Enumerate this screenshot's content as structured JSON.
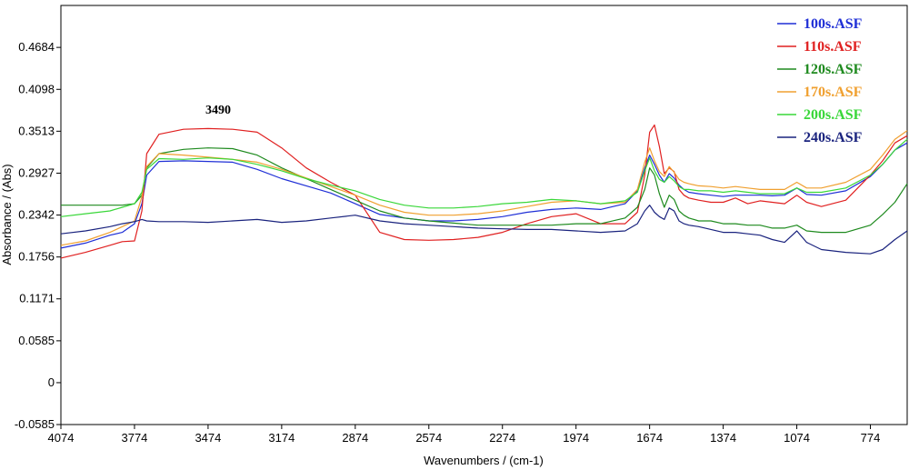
{
  "chart_data": {
    "type": "line",
    "title": "",
    "xlabel": "Wavenumbers / (cm-1)",
    "ylabel": "Absorbance / (Abs)",
    "xlim": [
      4074,
      624
    ],
    "ylim": [
      -0.0585,
      0.527
    ],
    "x_ticks": [
      "4074",
      "3774",
      "3474",
      "3174",
      "2874",
      "2574",
      "2274",
      "1974",
      "1674",
      "1374",
      "1074",
      "774"
    ],
    "y_ticks": [
      "-0.0585",
      "0",
      "0.0585",
      "0.1171",
      "0.1756",
      "0.2342",
      "0.2927",
      "0.3513",
      "0.4098",
      "0.4684"
    ],
    "annotation": {
      "text": "3490",
      "x": 3490,
      "y": 0.372
    },
    "legend_position": "top-right",
    "x": [
      4074,
      3974,
      3874,
      3824,
      3774,
      3744,
      3724,
      3674,
      3574,
      3474,
      3374,
      3274,
      3174,
      3074,
      2974,
      2874,
      2774,
      2674,
      2574,
      2474,
      2374,
      2274,
      2174,
      2074,
      1974,
      1874,
      1774,
      1724,
      1694,
      1674,
      1654,
      1634,
      1614,
      1594,
      1574,
      1554,
      1534,
      1514,
      1474,
      1424,
      1374,
      1324,
      1274,
      1224,
      1174,
      1124,
      1074,
      1034,
      974,
      874,
      774,
      724,
      674,
      624
    ],
    "series": [
      {
        "name": "100s.ASF",
        "color": "#1f2fd6",
        "values": [
          0.188,
          0.195,
          0.206,
          0.21,
          0.222,
          0.25,
          0.29,
          0.309,
          0.31,
          0.309,
          0.308,
          0.298,
          0.285,
          0.275,
          0.265,
          0.25,
          0.235,
          0.23,
          0.226,
          0.226,
          0.228,
          0.232,
          0.238,
          0.242,
          0.244,
          0.242,
          0.25,
          0.268,
          0.3,
          0.318,
          0.305,
          0.29,
          0.28,
          0.292,
          0.286,
          0.276,
          0.27,
          0.266,
          0.264,
          0.262,
          0.26,
          0.262,
          0.262,
          0.262,
          0.261,
          0.262,
          0.272,
          0.263,
          0.262,
          0.268,
          0.288,
          0.305,
          0.325,
          0.335
        ]
      },
      {
        "name": "110s.ASF",
        "color": "#e02020",
        "values": [
          0.174,
          0.182,
          0.192,
          0.197,
          0.198,
          0.24,
          0.32,
          0.347,
          0.354,
          0.355,
          0.354,
          0.35,
          0.328,
          0.3,
          0.28,
          0.262,
          0.21,
          0.2,
          0.199,
          0.2,
          0.203,
          0.21,
          0.222,
          0.232,
          0.236,
          0.222,
          0.222,
          0.238,
          0.29,
          0.35,
          0.36,
          0.33,
          0.292,
          0.3,
          0.295,
          0.27,
          0.262,
          0.258,
          0.255,
          0.252,
          0.252,
          0.258,
          0.25,
          0.254,
          0.252,
          0.25,
          0.262,
          0.252,
          0.246,
          0.255,
          0.29,
          0.31,
          0.335,
          0.345
        ]
      },
      {
        "name": "120s.ASF",
        "color": "#1e8a1e",
        "values": [
          0.248,
          0.248,
          0.248,
          0.248,
          0.25,
          0.262,
          0.3,
          0.32,
          0.326,
          0.328,
          0.327,
          0.318,
          0.3,
          0.285,
          0.27,
          0.255,
          0.24,
          0.23,
          0.226,
          0.223,
          0.22,
          0.22,
          0.22,
          0.22,
          0.222,
          0.222,
          0.23,
          0.245,
          0.27,
          0.3,
          0.29,
          0.264,
          0.245,
          0.262,
          0.256,
          0.24,
          0.234,
          0.23,
          0.226,
          0.226,
          0.222,
          0.222,
          0.22,
          0.22,
          0.216,
          0.216,
          0.22,
          0.212,
          0.21,
          0.21,
          0.22,
          0.235,
          0.252,
          0.278
        ]
      },
      {
        "name": "170s.ASF",
        "color": "#f0a030",
        "values": [
          0.192,
          0.198,
          0.21,
          0.218,
          0.226,
          0.26,
          0.302,
          0.32,
          0.318,
          0.315,
          0.312,
          0.308,
          0.298,
          0.286,
          0.274,
          0.262,
          0.248,
          0.238,
          0.234,
          0.234,
          0.236,
          0.24,
          0.246,
          0.252,
          0.254,
          0.25,
          0.252,
          0.27,
          0.308,
          0.328,
          0.31,
          0.295,
          0.288,
          0.302,
          0.294,
          0.284,
          0.28,
          0.278,
          0.275,
          0.274,
          0.272,
          0.274,
          0.272,
          0.27,
          0.27,
          0.27,
          0.28,
          0.272,
          0.272,
          0.28,
          0.298,
          0.318,
          0.34,
          0.352
        ]
      },
      {
        "name": "200s.ASF",
        "color": "#39d739",
        "values": [
          0.232,
          0.236,
          0.24,
          0.245,
          0.25,
          0.266,
          0.298,
          0.313,
          0.312,
          0.314,
          0.312,
          0.305,
          0.296,
          0.285,
          0.276,
          0.268,
          0.256,
          0.248,
          0.244,
          0.244,
          0.246,
          0.25,
          0.252,
          0.256,
          0.254,
          0.25,
          0.254,
          0.266,
          0.296,
          0.314,
          0.296,
          0.284,
          0.28,
          0.288,
          0.282,
          0.274,
          0.27,
          0.27,
          0.268,
          0.268,
          0.266,
          0.268,
          0.266,
          0.264,
          0.264,
          0.264,
          0.272,
          0.266,
          0.266,
          0.272,
          0.29,
          0.305,
          0.325,
          0.34
        ]
      },
      {
        "name": "240s.ASF",
        "color": "#1a237e",
        "values": [
          0.208,
          0.212,
          0.218,
          0.222,
          0.225,
          0.228,
          0.226,
          0.225,
          0.225,
          0.224,
          0.226,
          0.228,
          0.224,
          0.226,
          0.23,
          0.234,
          0.226,
          0.222,
          0.22,
          0.218,
          0.216,
          0.215,
          0.214,
          0.214,
          0.212,
          0.21,
          0.212,
          0.222,
          0.24,
          0.248,
          0.238,
          0.232,
          0.228,
          0.244,
          0.24,
          0.226,
          0.222,
          0.22,
          0.218,
          0.214,
          0.21,
          0.21,
          0.208,
          0.206,
          0.2,
          0.196,
          0.212,
          0.196,
          0.186,
          0.182,
          0.18,
          0.186,
          0.2,
          0.212
        ]
      }
    ]
  }
}
